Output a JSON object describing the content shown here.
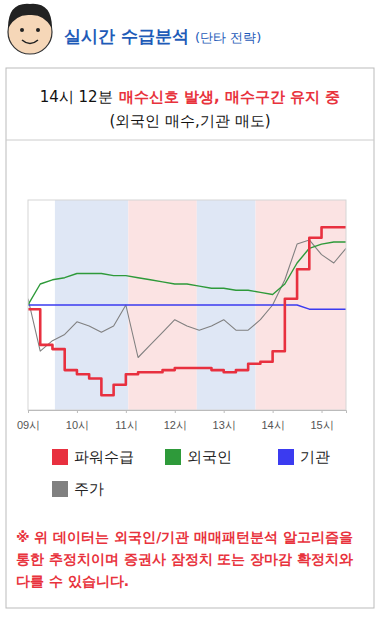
{
  "header": {
    "title": "실시간 수급분석",
    "subtitle": "(단타 전략)"
  },
  "signal": {
    "time": "14시 12분",
    "text": "매수신호 발생, 매수구간 유지 중",
    "detail": "(외국인 매수,기관 매도)"
  },
  "chart_data": {
    "type": "line",
    "x": [
      9,
      9.25,
      9.5,
      9.75,
      10,
      10.25,
      10.5,
      10.75,
      11,
      11.25,
      11.5,
      11.75,
      12,
      12.25,
      12.5,
      12.75,
      13,
      13.25,
      13.5,
      13.75,
      14,
      14.25,
      14.5,
      14.75,
      15,
      15.25,
      15.5
    ],
    "xlim": [
      9,
      15.5
    ],
    "xticks": [
      {
        "value": 9,
        "label": "09시"
      },
      {
        "value": 10,
        "label": "10시"
      },
      {
        "value": 11,
        "label": "11시"
      },
      {
        "value": 12,
        "label": "12시"
      },
      {
        "value": 13,
        "label": "13시"
      },
      {
        "value": 14,
        "label": "14시"
      },
      {
        "value": 15,
        "label": "15시"
      }
    ],
    "ylim": [
      0,
      100
    ],
    "tick_labels": "x",
    "legend": "bottom",
    "regions": [
      {
        "from": 9.55,
        "to": 11.05,
        "color": "#dfe7f5"
      },
      {
        "from": 11.05,
        "to": 12.45,
        "color": "#fbe3e3"
      },
      {
        "from": 12.45,
        "to": 13.65,
        "color": "#dfe7f5"
      },
      {
        "from": 13.65,
        "to": 15.5,
        "color": "#fbe3e3"
      }
    ],
    "series": [
      {
        "name": "파워수급",
        "color": "#e8303f",
        "line_style": "step",
        "values": [
          48,
          31,
          29,
          19,
          17,
          15,
          7,
          12,
          17,
          18,
          18,
          19,
          20,
          20,
          20,
          19,
          18,
          19,
          22,
          23,
          28,
          53,
          67,
          82,
          87,
          87,
          87
        ]
      },
      {
        "name": "외국인",
        "color": "#2e9a3a",
        "line_style": "solid",
        "values": [
          50,
          60,
          62,
          63,
          65,
          65,
          65,
          64,
          64,
          63,
          62,
          61,
          60,
          60,
          59,
          58,
          58,
          57,
          57,
          56,
          55,
          60,
          70,
          77,
          79,
          80,
          80
        ]
      },
      {
        "name": "기관",
        "color": "#3b3bf0",
        "line_style": "solid",
        "values": [
          50,
          50,
          50,
          50,
          50,
          50,
          50,
          50,
          50,
          50,
          50,
          50,
          50,
          50,
          50,
          50,
          50,
          50,
          50,
          50,
          50,
          50,
          50,
          48,
          48,
          48,
          48
        ]
      },
      {
        "name": "주가",
        "color": "#808080",
        "line_style": "solid",
        "values": [
          53,
          28,
          33,
          36,
          42,
          40,
          37,
          40,
          50,
          25,
          31,
          37,
          43,
          40,
          38,
          40,
          43,
          38,
          38,
          43,
          50,
          62,
          79,
          81,
          74,
          70,
          77
        ]
      }
    ]
  },
  "note": "※ 위 데이터는 외국인/기관 매매패턴분석 알고리즘을 통한 추정치이며 증권사 잠정치 또는 장마감 확정치와 다를 수 있습니다."
}
